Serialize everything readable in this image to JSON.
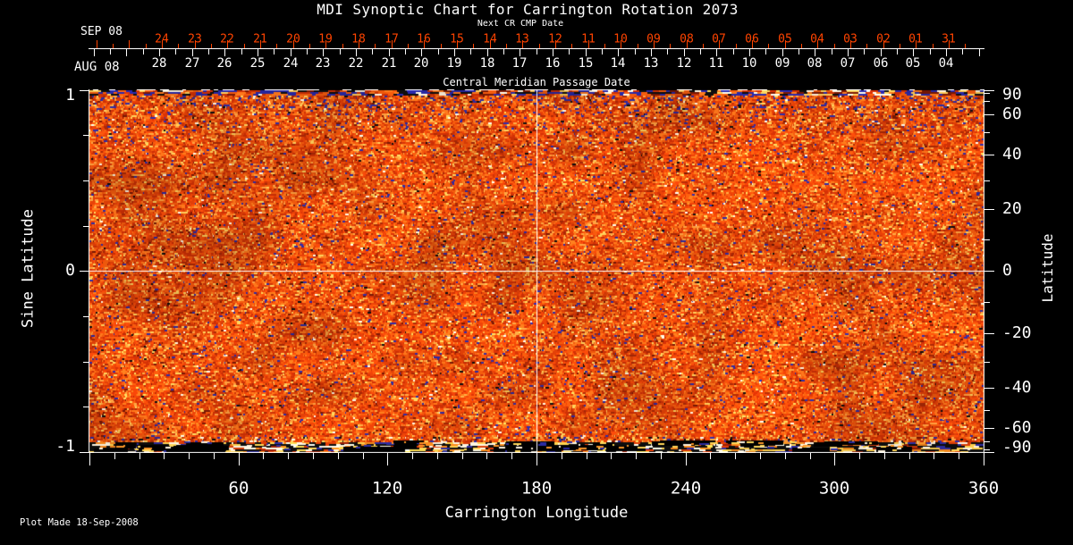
{
  "title": "MDI Synoptic Chart for Carrington Rotation 2073",
  "top_axis": {
    "next_cr_label": "Next CR CMP Date",
    "next_cr_month": "SEP 08",
    "next_cr_dates": [
      "24",
      "23",
      "22",
      "21",
      "20",
      "19",
      "18",
      "17",
      "16",
      "15",
      "14",
      "13",
      "12",
      "11",
      "10",
      "09",
      "08",
      "07",
      "06",
      "05",
      "04",
      "03",
      "02",
      "01",
      "31"
    ],
    "cmp_month": "AUG 08",
    "cmp_dates": [
      "28",
      "27",
      "26",
      "25",
      "24",
      "23",
      "22",
      "21",
      "20",
      "19",
      "18",
      "17",
      "16",
      "15",
      "14",
      "13",
      "12",
      "11",
      "10",
      "09",
      "08",
      "07",
      "06",
      "05",
      "04"
    ],
    "cmp_axis_label": "Central Meridian Passage Date"
  },
  "x_axis": {
    "label": "Carrington Longitude",
    "tick_labels": [
      "60",
      "120",
      "180",
      "240",
      "300",
      "360"
    ],
    "tick_values": [
      60,
      120,
      180,
      240,
      300,
      360
    ],
    "minor_step": 10,
    "range": [
      0,
      360
    ]
  },
  "y_axis_left": {
    "label": "Sine Latitude",
    "tick_labels": [
      "1",
      "0",
      "-1"
    ],
    "tick_values": [
      1,
      0,
      -1
    ],
    "minor_step": 0.25,
    "range": [
      -1,
      1
    ]
  },
  "y_axis_right": {
    "label": "Latitude",
    "tick_labels": [
      "90",
      "60",
      "40",
      "20",
      "0",
      "-20",
      "-40",
      "-60",
      "-90"
    ],
    "tick_values": [
      90,
      60,
      40,
      20,
      0,
      -20,
      -40,
      -60,
      -90
    ],
    "minor_step_deg": 10
  },
  "footer": {
    "plot_made": "Plot Made 18-Sep-2008"
  },
  "colors": {
    "background": "#000000",
    "axis_white": "#ffffff",
    "next_cr_red": "#ff4400",
    "data_palette": [
      "#e0400a",
      "#f05a0e",
      "#cc3004",
      "#ff781c",
      "#a62806",
      "#ffa040",
      "#ffcd5a",
      "#2e2aa0",
      "#fff5e1",
      "#141414"
    ]
  },
  "chart_data": {
    "type": "heatmap",
    "title": "MDI Synoptic Chart for Carrington Rotation 2073",
    "xlabel": "Carrington Longitude",
    "ylabel": "Sine Latitude",
    "ylabel_right": "Latitude",
    "x_range": [
      0,
      360
    ],
    "x_major_ticks": [
      60,
      120,
      180,
      240,
      300,
      360
    ],
    "x_minor_step": 10,
    "y_sine_range": [
      -1,
      1
    ],
    "y_sine_major_ticks": [
      1,
      0,
      -1
    ],
    "y_latitude_labeled_ticks": [
      90,
      60,
      40,
      20,
      0,
      -20,
      -40,
      -60,
      -90
    ],
    "reference_lines": {
      "longitude": 180,
      "sine_latitude": 0
    },
    "current_cr_cmp_dates": {
      "month": "AUG 08",
      "days": [
        "28",
        "27",
        "26",
        "25",
        "24",
        "23",
        "22",
        "21",
        "20",
        "19",
        "18",
        "17",
        "16",
        "15",
        "14",
        "13",
        "12",
        "11",
        "10",
        "09",
        "08",
        "07",
        "06",
        "05",
        "04"
      ]
    },
    "next_cr_cmp_dates": {
      "month": "SEP 08",
      "days": [
        "24",
        "23",
        "22",
        "21",
        "20",
        "19",
        "18",
        "17",
        "16",
        "15",
        "14",
        "13",
        "12",
        "11",
        "10",
        "09",
        "08",
        "07",
        "06",
        "05",
        "04",
        "03",
        "02",
        "01",
        "31"
      ]
    },
    "description": "Dense orange/red magnetogram noise field with sparse navy-blue and yellow speckles; blue-streaked band along the top edge; black data-gap band with white/yellow streaks along the bottom (south pole); white crosshair lines at longitude 180 and latitude 0.",
    "plot_made": "Plot Made 18-Sep-2008"
  }
}
